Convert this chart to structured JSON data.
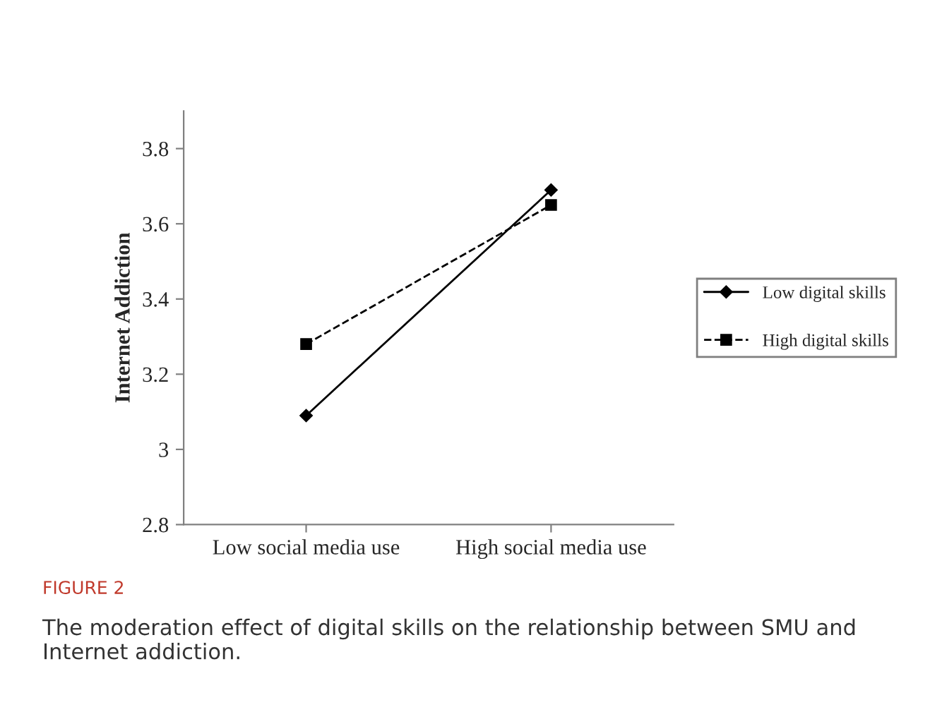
{
  "chart_data": {
    "type": "line",
    "ylabel": "Internet Addiction",
    "categories": [
      "Low social media use",
      "High social media use"
    ],
    "series": [
      {
        "name": "Low digital skills",
        "color": "#000000",
        "values": [
          3.09,
          3.69
        ],
        "marker": "diamond",
        "line_style": "solid"
      },
      {
        "name": "High digital skills",
        "color": "#000000",
        "values": [
          3.28,
          3.65
        ],
        "marker": "square",
        "line_style": "dashed"
      }
    ],
    "ylim": [
      2.8,
      3.9
    ],
    "yticks": [
      2.8,
      3,
      3.2,
      3.4,
      3.6,
      3.8
    ],
    "grid": false,
    "legend": "right",
    "annotations": [
      "FIGURE 2",
      "The moderation effect of digital skills on the relationship between SMU and Internet addiction."
    ]
  }
}
